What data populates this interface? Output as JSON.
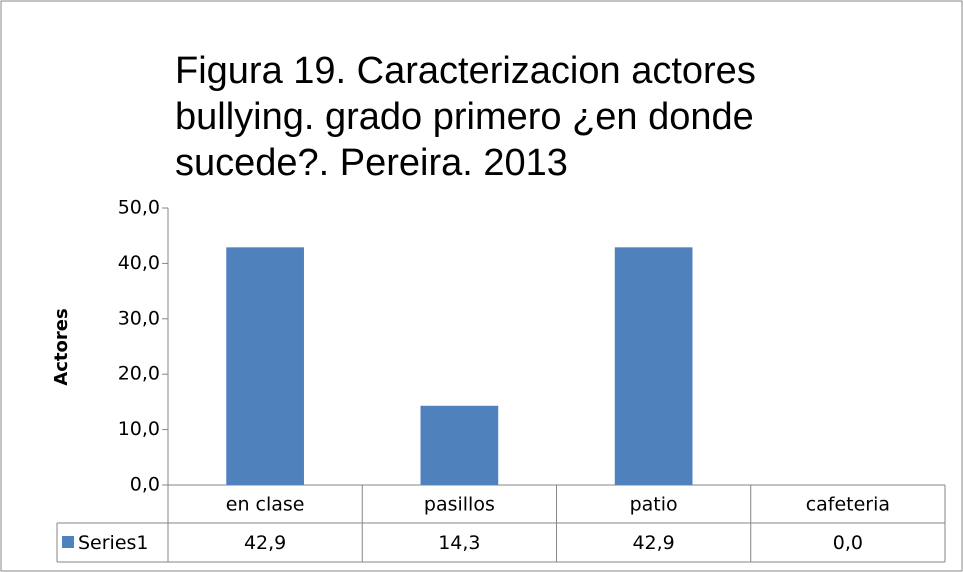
{
  "chart_data": {
    "type": "bar",
    "title": "Figura 19. Caracterizacion actores bullying. grado primero ¿en donde sucede?. Pereira. 2013",
    "y_axis_label": "Actores",
    "categories": [
      "en clase",
      "pasillos",
      "patio",
      "cafeteria"
    ],
    "series": [
      {
        "name": "Series1",
        "color": "#4f81bd",
        "values": [
          42.9,
          14.3,
          42.9,
          0.0
        ],
        "value_labels": [
          "42,9",
          "14,3",
          "42,9",
          "0,0"
        ]
      }
    ],
    "ylim": [
      0,
      50
    ],
    "yticks": [
      {
        "value": 0,
        "label": "0,0"
      },
      {
        "value": 10,
        "label": "10,0"
      },
      {
        "value": 20,
        "label": "20,0"
      },
      {
        "value": 30,
        "label": "30,0"
      },
      {
        "value": 40,
        "label": "40,0"
      },
      {
        "value": 50,
        "label": "50,0"
      }
    ]
  }
}
